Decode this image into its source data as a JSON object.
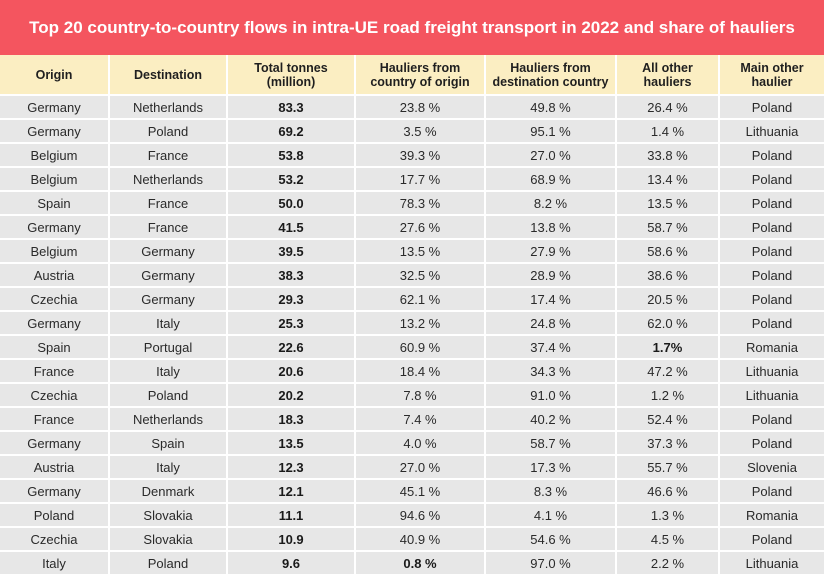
{
  "title": "Top 20 country-to-country flows in intra-UE road freight transport in 2022 and share of hauliers",
  "columns": [
    "Origin",
    "Destination",
    "Total  tonnes (million)",
    "Hauliers from country of origin",
    "Hauliers from destination country",
    "All other hauliers",
    "Main other haulier"
  ],
  "rows": [
    [
      "Germany",
      "Netherlands",
      "83.3",
      "23.8 %",
      "49.8 %",
      "26.4 %",
      "Poland"
    ],
    [
      "Germany",
      "Poland",
      "69.2",
      "3.5 %",
      "95.1 %",
      "1.4 %",
      "Lithuania"
    ],
    [
      "Belgium",
      "France",
      "53.8",
      "39.3 %",
      "27.0 %",
      "33.8 %",
      "Poland"
    ],
    [
      "Belgium",
      "Netherlands",
      "53.2",
      "17.7 %",
      "68.9 %",
      "13.4 %",
      "Poland"
    ],
    [
      "Spain",
      "France",
      "50.0",
      "78.3 %",
      "8.2 %",
      "13.5 %",
      "Poland"
    ],
    [
      "Germany",
      "France",
      "41.5",
      "27.6 %",
      "13.8 %",
      "58.7 %",
      "Poland"
    ],
    [
      "Belgium",
      "Germany",
      "39.5",
      "13.5 %",
      "27.9 %",
      "58.6 %",
      "Poland"
    ],
    [
      "Austria",
      "Germany",
      "38.3",
      "32.5 %",
      "28.9 %",
      "38.6 %",
      "Poland"
    ],
    [
      "Czechia",
      "Germany",
      "29.3",
      "62.1 %",
      "17.4 %",
      "20.5 %",
      "Poland"
    ],
    [
      "Germany",
      "Italy",
      "25.3",
      "13.2 %",
      "24.8 %",
      "62.0 %",
      "Poland"
    ],
    [
      "Spain",
      "Portugal",
      "22.6",
      "60.9 %",
      "37.4 %",
      "1.7%",
      "Romania"
    ],
    [
      "France",
      "Italy",
      "20.6",
      "18.4 %",
      "34.3 %",
      "47.2 %",
      "Lithuania"
    ],
    [
      "Czechia",
      "Poland",
      "20.2",
      "7.8 %",
      "91.0 %",
      "1.2 %",
      "Lithuania"
    ],
    [
      "France",
      "Netherlands",
      "18.3",
      "7.4 %",
      "40.2 %",
      "52.4 %",
      "Poland"
    ],
    [
      "Germany",
      "Spain",
      "13.5",
      "4.0 %",
      "58.7 %",
      "37.3 %",
      "Poland"
    ],
    [
      "Austria",
      "Italy",
      "12.3",
      "27.0 %",
      "17.3 %",
      "55.7 %",
      "Slovenia"
    ],
    [
      "Germany",
      "Denmark",
      "12.1",
      "45.1 %",
      "8.3 %",
      "46.6 %",
      "Poland"
    ],
    [
      "Poland",
      "Slovakia",
      "11.1",
      "94.6 %",
      "4.1 %",
      "1.3 %",
      "Romania"
    ],
    [
      "Czechia",
      "Slovakia",
      "10.9",
      "40.9 %",
      "54.6 %",
      "4.5 %",
      "Poland"
    ],
    [
      "Italy",
      "Poland",
      "9.6",
      "0.8 %",
      "97.0 %",
      "2.2 %",
      "Lithuania"
    ]
  ],
  "bold_cells": [
    [
      10,
      5
    ],
    [
      19,
      3
    ]
  ],
  "colors": {
    "title_background": "#f4555f",
    "header_background": "#fbeec2",
    "row_background": "#e7e7e7"
  }
}
